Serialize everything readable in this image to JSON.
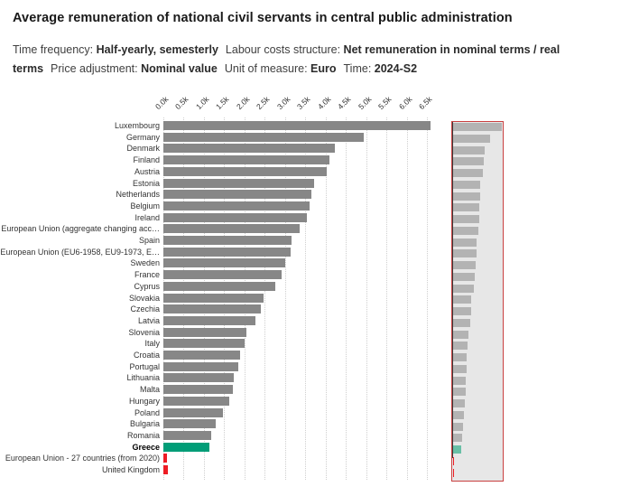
{
  "header": {
    "title": "Average remuneration of national civil servants in central public administration",
    "meta": [
      {
        "label": "Time frequency:",
        "value": "Half-yearly, semesterly"
      },
      {
        "label": "Labour costs structure:",
        "value": "Net remuneration in nominal terms / real terms"
      },
      {
        "label": "Price adjustment:",
        "value": "Nominal value"
      },
      {
        "label": "Unit of measure:",
        "value": "Euro"
      },
      {
        "label": "Time:",
        "value": "2024-S2"
      }
    ]
  },
  "chart_data": {
    "type": "bar",
    "orientation": "horizontal",
    "title": "Average remuneration of national civil servants in central public administration",
    "unit": "Euro",
    "xlim": [
      0,
      6500
    ],
    "x_ticks": [
      "0.0k",
      "0.5k",
      "1.0k",
      "1.5k",
      "2.0k",
      "2.5k",
      "3.0k",
      "3.5k",
      "4.0k",
      "4.5k",
      "5.0k",
      "5.5k",
      "6.0k",
      "6.5k"
    ],
    "grid": "vertical-dotted",
    "legend": false,
    "categories": [
      "Luxembourg",
      "Germany",
      "Denmark",
      "Finland",
      "Austria",
      "Estonia",
      "Netherlands",
      "Belgium",
      "Ireland",
      "European Union (aggregate changing acc…",
      "Spain",
      "European Union (EU6-1958, EU9-1973, E…",
      "Sweden",
      "France",
      "Cyprus",
      "Slovakia",
      "Czechia",
      "Latvia",
      "Slovenia",
      "Italy",
      "Croatia",
      "Portugal",
      "Lithuania",
      "Malta",
      "Hungary",
      "Poland",
      "Bulgaria",
      "Romania",
      "Greece",
      "European Union - 27 countries (from 2020)",
      "United Kingdom"
    ],
    "values": [
      6600,
      4950,
      4240,
      4100,
      4040,
      3720,
      3660,
      3600,
      3550,
      3370,
      3160,
      3140,
      3000,
      2920,
      2760,
      2470,
      2400,
      2270,
      2050,
      2000,
      1890,
      1850,
      1740,
      1710,
      1630,
      1470,
      1290,
      1170,
      1130,
      90,
      105
    ],
    "bar_styles": [
      "default",
      "default",
      "default",
      "default",
      "default",
      "default",
      "default",
      "default",
      "default",
      "default",
      "default",
      "default",
      "default",
      "default",
      "default",
      "default",
      "default",
      "default",
      "default",
      "default",
      "default",
      "default",
      "default",
      "default",
      "default",
      "default",
      "default",
      "default",
      "highlight",
      "flag",
      "flag"
    ],
    "bold_labels": [
      "Greece"
    ]
  },
  "colors": {
    "bar_default": "#878787",
    "bar_highlight": "#009d77",
    "bar_flag": "#ed1c24",
    "grid": "#cfcfcf",
    "text": "#333333",
    "minimap_bg": "#e7e7e7",
    "minimap_border": "#c94040",
    "minimap_axis": "#3a3a3a",
    "minimap_bar": "#b3b3b3",
    "minimap_highlight": "#69bfa6",
    "minimap_flag": "#ed1c24"
  }
}
